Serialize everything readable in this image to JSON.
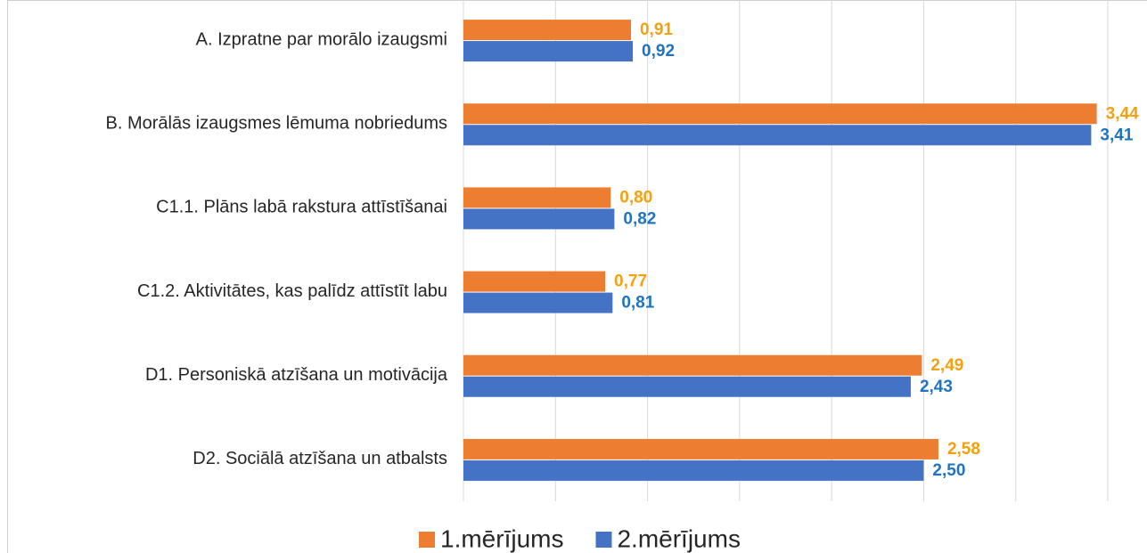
{
  "chart_data": {
    "type": "hbar",
    "categories": [
      "A. Izpratne par morālo izaugsmi",
      "B. Morālās izaugsmes lēmuma nobriedums",
      "C1.1. Plāns labā rakstura attīstīšanai",
      "C1.2. Aktivitātes, kas palīdz attīstīt labu",
      "D1. Personiskā atzīšana un motivācija",
      "D2. Sociālā atzīšana un atbalsts"
    ],
    "series": [
      {
        "name": "1.mērījums",
        "color": "#ed7d31",
        "label_color": "#f5a00f",
        "values": [
          0.91,
          3.44,
          0.8,
          0.77,
          2.49,
          2.58
        ],
        "value_labels": [
          "0,91",
          "3,44",
          "0,80",
          "0,77",
          "2,49",
          "2,58"
        ]
      },
      {
        "name": "2.mērījums",
        "color": "#4472c4",
        "label_color": "#1f74c2",
        "values": [
          0.92,
          3.41,
          0.82,
          0.81,
          2.43,
          2.5
        ],
        "value_labels": [
          "0,92",
          "3,41",
          "0,82",
          "0,81",
          "2,43",
          "2,50"
        ]
      }
    ],
    "xlim": [
      0,
      3.5
    ],
    "xticks": [
      0,
      0.5,
      1,
      1.5,
      2,
      2.5,
      3,
      3.5
    ],
    "grid": true,
    "legend": "bottom"
  }
}
